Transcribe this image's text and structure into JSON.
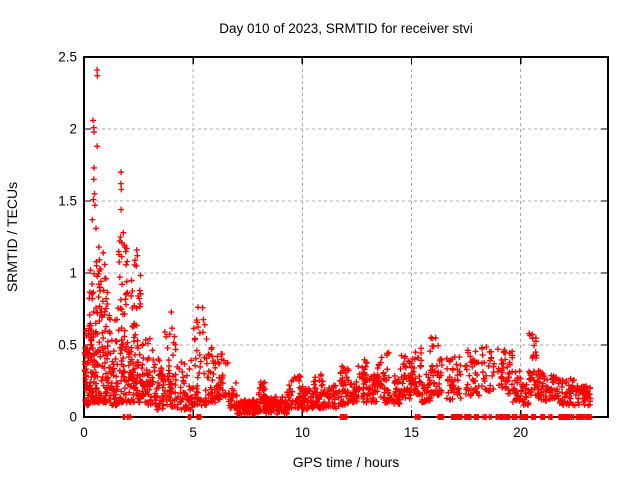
{
  "chart_data": {
    "type": "scatter",
    "title": "Day 010 of 2023, SRMTID for receiver stvi",
    "xlabel": "GPS time / hours",
    "ylabel": "SRMTID / TECUs",
    "xlim": [
      0,
      24
    ],
    "ylim": [
      0,
      2.5
    ],
    "xticks": [
      0,
      5,
      10,
      15,
      20
    ],
    "xtick_labels": [
      "0",
      "5",
      "10",
      "15",
      "20"
    ],
    "yticks": [
      0,
      0.5,
      1,
      1.5,
      2,
      2.5
    ],
    "ytick_labels": [
      "0",
      "0.5",
      "1",
      "1.5",
      "2",
      "2.5"
    ],
    "grid": true,
    "legend": false,
    "marker": "plus",
    "colors": {
      "points": "#ff0000",
      "grid": "#a8a8a8",
      "axis": "#000000",
      "text": "#000000",
      "background": "#ffffff"
    },
    "outlier_points": [
      [
        0.6,
        2.41
      ],
      [
        0.61,
        2.37
      ],
      [
        0.41,
        2.06
      ],
      [
        0.45,
        2.01
      ],
      [
        0.46,
        1.98
      ],
      [
        0.6,
        1.88
      ],
      [
        0.46,
        1.73
      ],
      [
        1.7,
        1.7
      ],
      [
        0.45,
        1.65
      ],
      [
        1.69,
        1.62
      ],
      [
        1.71,
        1.58
      ],
      [
        0.48,
        1.55
      ],
      [
        0.43,
        1.51
      ],
      [
        0.5,
        1.47
      ],
      [
        1.7,
        1.44
      ],
      [
        0.38,
        1.37
      ],
      [
        0.55,
        1.31
      ],
      [
        1.67,
        1.25
      ],
      [
        1.73,
        1.21
      ],
      [
        0.68,
        1.18
      ],
      [
        1.95,
        1.17
      ],
      [
        2.42,
        1.16
      ],
      [
        0.88,
        1.14
      ],
      [
        2.44,
        1.12
      ],
      [
        1.98,
        1.08
      ],
      [
        0.95,
        1.06
      ],
      [
        2.4,
        1.05
      ],
      [
        0.3,
        1.02
      ]
    ],
    "density_segments_format": [
      "x_start_hr",
      "x_end_hr",
      "y_min_tecu",
      "y_max_tecu",
      "n_points",
      "bottom_bias"
    ],
    "density_segments": [
      [
        0.02,
        0.2,
        0.08,
        0.6,
        40,
        1.7
      ],
      [
        0.2,
        0.45,
        0.1,
        0.95,
        55,
        1.7
      ],
      [
        0.45,
        0.8,
        0.1,
        1.12,
        70,
        1.6
      ],
      [
        0.8,
        1.15,
        0.1,
        1.0,
        60,
        1.7
      ],
      [
        1.15,
        1.55,
        0.08,
        0.75,
        55,
        1.7
      ],
      [
        1.55,
        1.95,
        0.1,
        1.28,
        65,
        1.9
      ],
      [
        1.95,
        2.3,
        0.1,
        0.98,
        55,
        1.8
      ],
      [
        2.3,
        2.6,
        0.1,
        1.1,
        45,
        1.9
      ],
      [
        2.6,
        3.2,
        0.08,
        0.58,
        55,
        1.5
      ],
      [
        3.2,
        3.7,
        0.05,
        0.42,
        45,
        1.4
      ],
      [
        3.7,
        4.25,
        0.07,
        0.73,
        50,
        1.9
      ],
      [
        4.25,
        4.95,
        0.05,
        0.4,
        48,
        1.5
      ],
      [
        4.95,
        5.65,
        0.08,
        0.77,
        55,
        1.9
      ],
      [
        5.65,
        6.0,
        0.1,
        0.5,
        30,
        1.5
      ],
      [
        6.0,
        6.6,
        0.12,
        0.44,
        40,
        1.5
      ],
      [
        6.6,
        7.0,
        0.06,
        0.24,
        30,
        1.4
      ],
      [
        7.0,
        8.0,
        0.02,
        0.12,
        85,
        1.2
      ],
      [
        8.0,
        8.3,
        0.04,
        0.26,
        30,
        1.5
      ],
      [
        8.3,
        9.3,
        0.02,
        0.14,
        80,
        1.2
      ],
      [
        9.3,
        10.0,
        0.06,
        0.3,
        45,
        1.4
      ],
      [
        10.0,
        10.5,
        0.05,
        0.22,
        40,
        1.3
      ],
      [
        10.5,
        10.95,
        0.06,
        0.3,
        40,
        1.4
      ],
      [
        10.95,
        11.7,
        0.06,
        0.22,
        50,
        1.3
      ],
      [
        11.7,
        12.15,
        0.08,
        0.38,
        40,
        1.5
      ],
      [
        12.15,
        12.5,
        0.1,
        0.26,
        30,
        1.4
      ],
      [
        12.5,
        13.0,
        0.1,
        0.43,
        40,
        1.5
      ],
      [
        13.0,
        13.45,
        0.1,
        0.3,
        35,
        1.4
      ],
      [
        13.45,
        13.95,
        0.1,
        0.45,
        40,
        1.5
      ],
      [
        13.95,
        14.45,
        0.09,
        0.33,
        40,
        1.4
      ],
      [
        14.45,
        14.95,
        0.12,
        0.45,
        40,
        1.5
      ],
      [
        14.95,
        15.45,
        0.15,
        0.53,
        46,
        1.5
      ],
      [
        15.45,
        15.85,
        0.1,
        0.3,
        30,
        1.4
      ],
      [
        15.85,
        16.4,
        0.15,
        0.56,
        46,
        1.5
      ],
      [
        16.6,
        17.25,
        0.12,
        0.42,
        44,
        1.4
      ],
      [
        17.45,
        18.1,
        0.14,
        0.48,
        40,
        1.4
      ],
      [
        18.2,
        18.8,
        0.18,
        0.5,
        30,
        1.4
      ],
      [
        18.95,
        19.35,
        0.2,
        0.55,
        26,
        1.4
      ],
      [
        19.35,
        19.65,
        0.15,
        0.5,
        20,
        1.5
      ],
      [
        19.65,
        20.1,
        0.1,
        0.32,
        30,
        1.3
      ],
      [
        20.1,
        20.38,
        0.08,
        0.25,
        20,
        1.3
      ],
      [
        20.38,
        20.8,
        0.15,
        0.58,
        38,
        1.5
      ],
      [
        20.8,
        21.2,
        0.1,
        0.32,
        30,
        1.3
      ],
      [
        21.2,
        21.75,
        0.12,
        0.3,
        36,
        1.3
      ],
      [
        21.75,
        22.45,
        0.08,
        0.27,
        40,
        1.3
      ],
      [
        22.45,
        23.2,
        0.08,
        0.22,
        48,
        1.2
      ]
    ],
    "zero_value_runs_format": [
      "x_start_hr",
      "x_end_hr"
    ],
    "zero_value_runs": [
      [
        1.8,
        1.86
      ],
      [
        1.99,
        2.13
      ],
      [
        4.79,
        4.88
      ],
      [
        5.17,
        5.34
      ],
      [
        11.76,
        12.02
      ],
      [
        15.18,
        15.38
      ],
      [
        16.22,
        16.45
      ],
      [
        16.85,
        17.3
      ],
      [
        17.45,
        17.72
      ],
      [
        17.88,
        18.06
      ],
      [
        18.28,
        18.42
      ],
      [
        18.58,
        18.64
      ],
      [
        18.88,
        19.5
      ],
      [
        19.62,
        19.82
      ],
      [
        19.98,
        20.32
      ],
      [
        20.5,
        20.66
      ],
      [
        20.92,
        21.1
      ],
      [
        21.3,
        21.44
      ],
      [
        21.76,
        22.42
      ],
      [
        22.55,
        22.92
      ],
      [
        23.0,
        23.22
      ]
    ],
    "seed": 20230110
  }
}
